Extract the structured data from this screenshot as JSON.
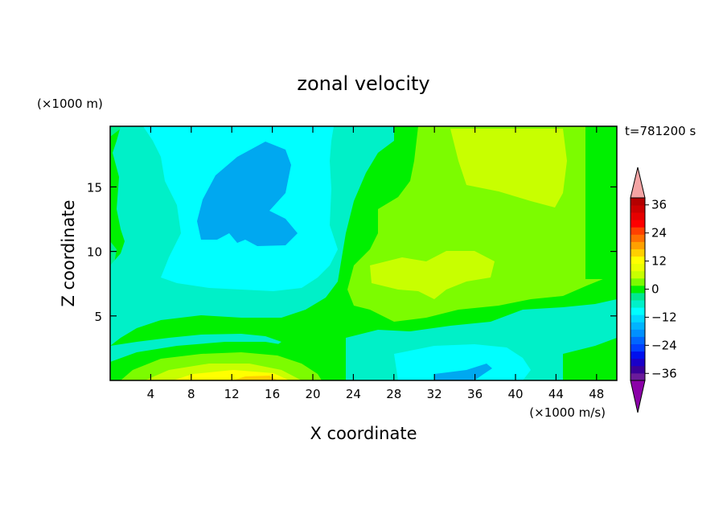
{
  "chart_data": {
    "type": "heatmap",
    "title": "zonal velocity",
    "xlabel": "X coordinate",
    "ylabel": "Z coordinate",
    "x_unit_label": "(×1000 m/s)",
    "y_unit_label": "(×1000 m)",
    "time_label": "t=781200 s",
    "xlim": [
      0,
      50
    ],
    "ylim": [
      0,
      19.7
    ],
    "x_ticks": [
      4,
      8,
      12,
      16,
      20,
      24,
      28,
      32,
      36,
      40,
      44,
      48
    ],
    "y_ticks": [
      5,
      10,
      15
    ],
    "colorbar": {
      "levels": [
        -42,
        -39,
        -36,
        -33,
        -30,
        -27,
        -24,
        -21,
        -18,
        -15,
        -12,
        -9,
        -6,
        -3,
        0,
        3,
        6,
        9,
        12,
        15,
        18,
        21,
        24,
        27,
        30,
        33,
        36,
        39,
        42
      ],
      "tick_labels": [
        "36",
        "24",
        "12",
        "0",
        "−12",
        "−24",
        "−36"
      ],
      "tick_values": [
        36,
        24,
        12,
        0,
        -12,
        -24,
        -36
      ],
      "colors": [
        "#6a1b9a",
        "#3a0099",
        "#1a00c8",
        "#0010ee",
        "#0040ff",
        "#0066ff",
        "#0090ff",
        "#00b4ff",
        "#00d8ff",
        "#00ffff",
        "#00f0c8",
        "#00e890",
        "#00f000",
        "#7cfc00",
        "#c8ff00",
        "#eaff00",
        "#ffff00",
        "#ffd000",
        "#ffa000",
        "#ff7000",
        "#ff4000",
        "#ff0000",
        "#e60000",
        "#cc0000",
        "#b40000"
      ],
      "over_color": "#f4a4a4",
      "under_color": "#8b00a8"
    },
    "regions": [
      {
        "level": 0,
        "description": "green field (0 to 6 m/s) covering the plot"
      },
      {
        "level": -6,
        "description": "spring green band near the left edge and lower layer"
      },
      {
        "level": -9,
        "description": "aquamarine shell around the upper-left cyan cell"
      },
      {
        "level": -12,
        "description": "cyan cell upper-left, x≈10–26, z≈7–19"
      },
      {
        "level": -18,
        "description": "blue core x≈12–20, z≈11–18"
      },
      {
        "level": 6,
        "description": "yellow-green region x≈24–50, z≈7–19"
      },
      {
        "level": 9,
        "description": "light yellow-green patches x≈33–40, z≈7–10"
      },
      {
        "level": 12,
        "description": "yellow near bottom x≈8–20, z≈0–2"
      },
      {
        "level": -12,
        "description": "cyan patch near bottom x≈28–44, z≈0–2"
      },
      {
        "level": -18,
        "description": "blue sliver bottom x≈32–37, z≈0–0.5"
      }
    ]
  }
}
